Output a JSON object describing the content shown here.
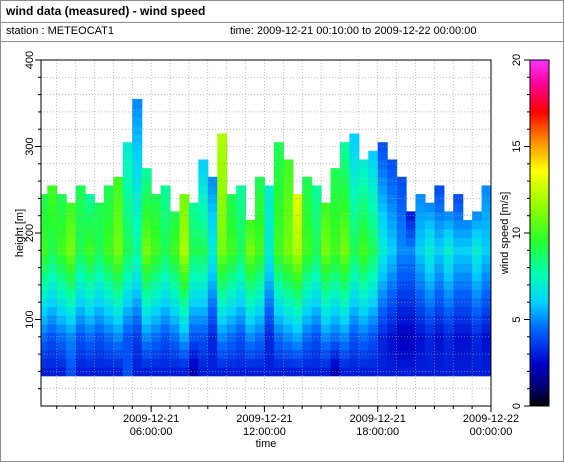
{
  "header": {
    "title": "wind data (measured) - wind speed",
    "station": "station : METEOCAT1",
    "time_range": "time: 2009-12-21 00:10:00 to 2009-12-22 00:00:00"
  },
  "chart_data": {
    "type": "heatmap",
    "title": "wind data (measured) - wind speed",
    "xlabel": "time",
    "ylabel": "height [m]",
    "colorbar_label": "wind speed [m/s]",
    "xlim": [
      "2009-12-21 00:10:00",
      "2009-12-22 00:00:00"
    ],
    "ylim": [
      0,
      400
    ],
    "zlim": [
      0,
      20
    ],
    "x_ticks": [
      {
        "line1": "2009-12-21",
        "line2": "06:00:00",
        "hours": 6
      },
      {
        "line1": "2009-12-21",
        "line2": "12:00:00",
        "hours": 12
      },
      {
        "line1": "2009-12-21",
        "line2": "18:00:00",
        "hours": 18
      },
      {
        "line1": "2009-12-22",
        "line2": "00:00:00",
        "hours": 24
      }
    ],
    "y_ticks": [
      100,
      200,
      300,
      400
    ],
    "colorbar_ticks": [
      0,
      5,
      10,
      15,
      20
    ],
    "grid": true,
    "height_levels_m": [
      40,
      50,
      60,
      70,
      80,
      90,
      100,
      110,
      120,
      130,
      140,
      150,
      160,
      170,
      180,
      190,
      200,
      210,
      220,
      230,
      240,
      250,
      260,
      270,
      280,
      290,
      300,
      310,
      320,
      330,
      340,
      350
    ],
    "profiles_hours": [
      0.5,
      1.0,
      1.5,
      2.0,
      2.5,
      3.0,
      3.5,
      4.0,
      4.5,
      5.0,
      5.5,
      6.0,
      6.5,
      7.0,
      7.5,
      8.0,
      8.5,
      9.0,
      9.5,
      10.0,
      10.5,
      11.0,
      11.5,
      12.0,
      12.5,
      13.0,
      13.5,
      14.0,
      14.5,
      15.0,
      15.5,
      16.0,
      16.5,
      17.0,
      17.5,
      18.0,
      18.5,
      19.0,
      19.5,
      20.0,
      20.5,
      21.0,
      21.5,
      22.0,
      22.5,
      23.0,
      23.5,
      24.0
    ],
    "profile_tops_m": [
      240,
      250,
      240,
      230,
      250,
      240,
      230,
      250,
      260,
      300,
      350,
      270,
      240,
      250,
      220,
      240,
      230,
      280,
      260,
      310,
      240,
      250,
      210,
      260,
      250,
      300,
      280,
      240,
      260,
      250,
      230,
      270,
      300,
      310,
      280,
      290,
      300,
      280,
      260,
      220,
      240,
      230,
      250,
      220,
      240,
      210,
      220,
      250
    ],
    "speed_low_ms": [
      3,
      3,
      3,
      4,
      3,
      3,
      3,
      3,
      3,
      4,
      3,
      3,
      3,
      3,
      3,
      3,
      2,
      3,
      3,
      3,
      3,
      3,
      3,
      3,
      3,
      3,
      3,
      3,
      3,
      3,
      3,
      2,
      3,
      3,
      3,
      3,
      3,
      3,
      3,
      3,
      3,
      3,
      3,
      3,
      3,
      3,
      3,
      3
    ],
    "speed_mid_ms": [
      10,
      9,
      10,
      11,
      9,
      10,
      9,
      10,
      11,
      9,
      8,
      11,
      10,
      9,
      10,
      12,
      9,
      9,
      7,
      11,
      10,
      9,
      11,
      10,
      7,
      10,
      11,
      12,
      10,
      9,
      11,
      10,
      11,
      9,
      10,
      9,
      7,
      6,
      5,
      5,
      6,
      7,
      6,
      7,
      6,
      6,
      7,
      6
    ],
    "speed_top_ms": [
      9,
      10,
      9,
      10,
      9,
      8,
      9,
      9,
      10,
      7,
      5,
      8,
      9,
      8,
      9,
      11,
      8,
      6,
      5,
      12,
      9,
      8,
      10,
      9,
      7,
      9,
      10,
      13,
      9,
      8,
      10,
      9,
      8,
      6,
      7,
      6,
      4,
      4,
      4,
      3,
      5,
      5,
      4,
      5,
      4,
      5,
      5,
      5
    ]
  }
}
